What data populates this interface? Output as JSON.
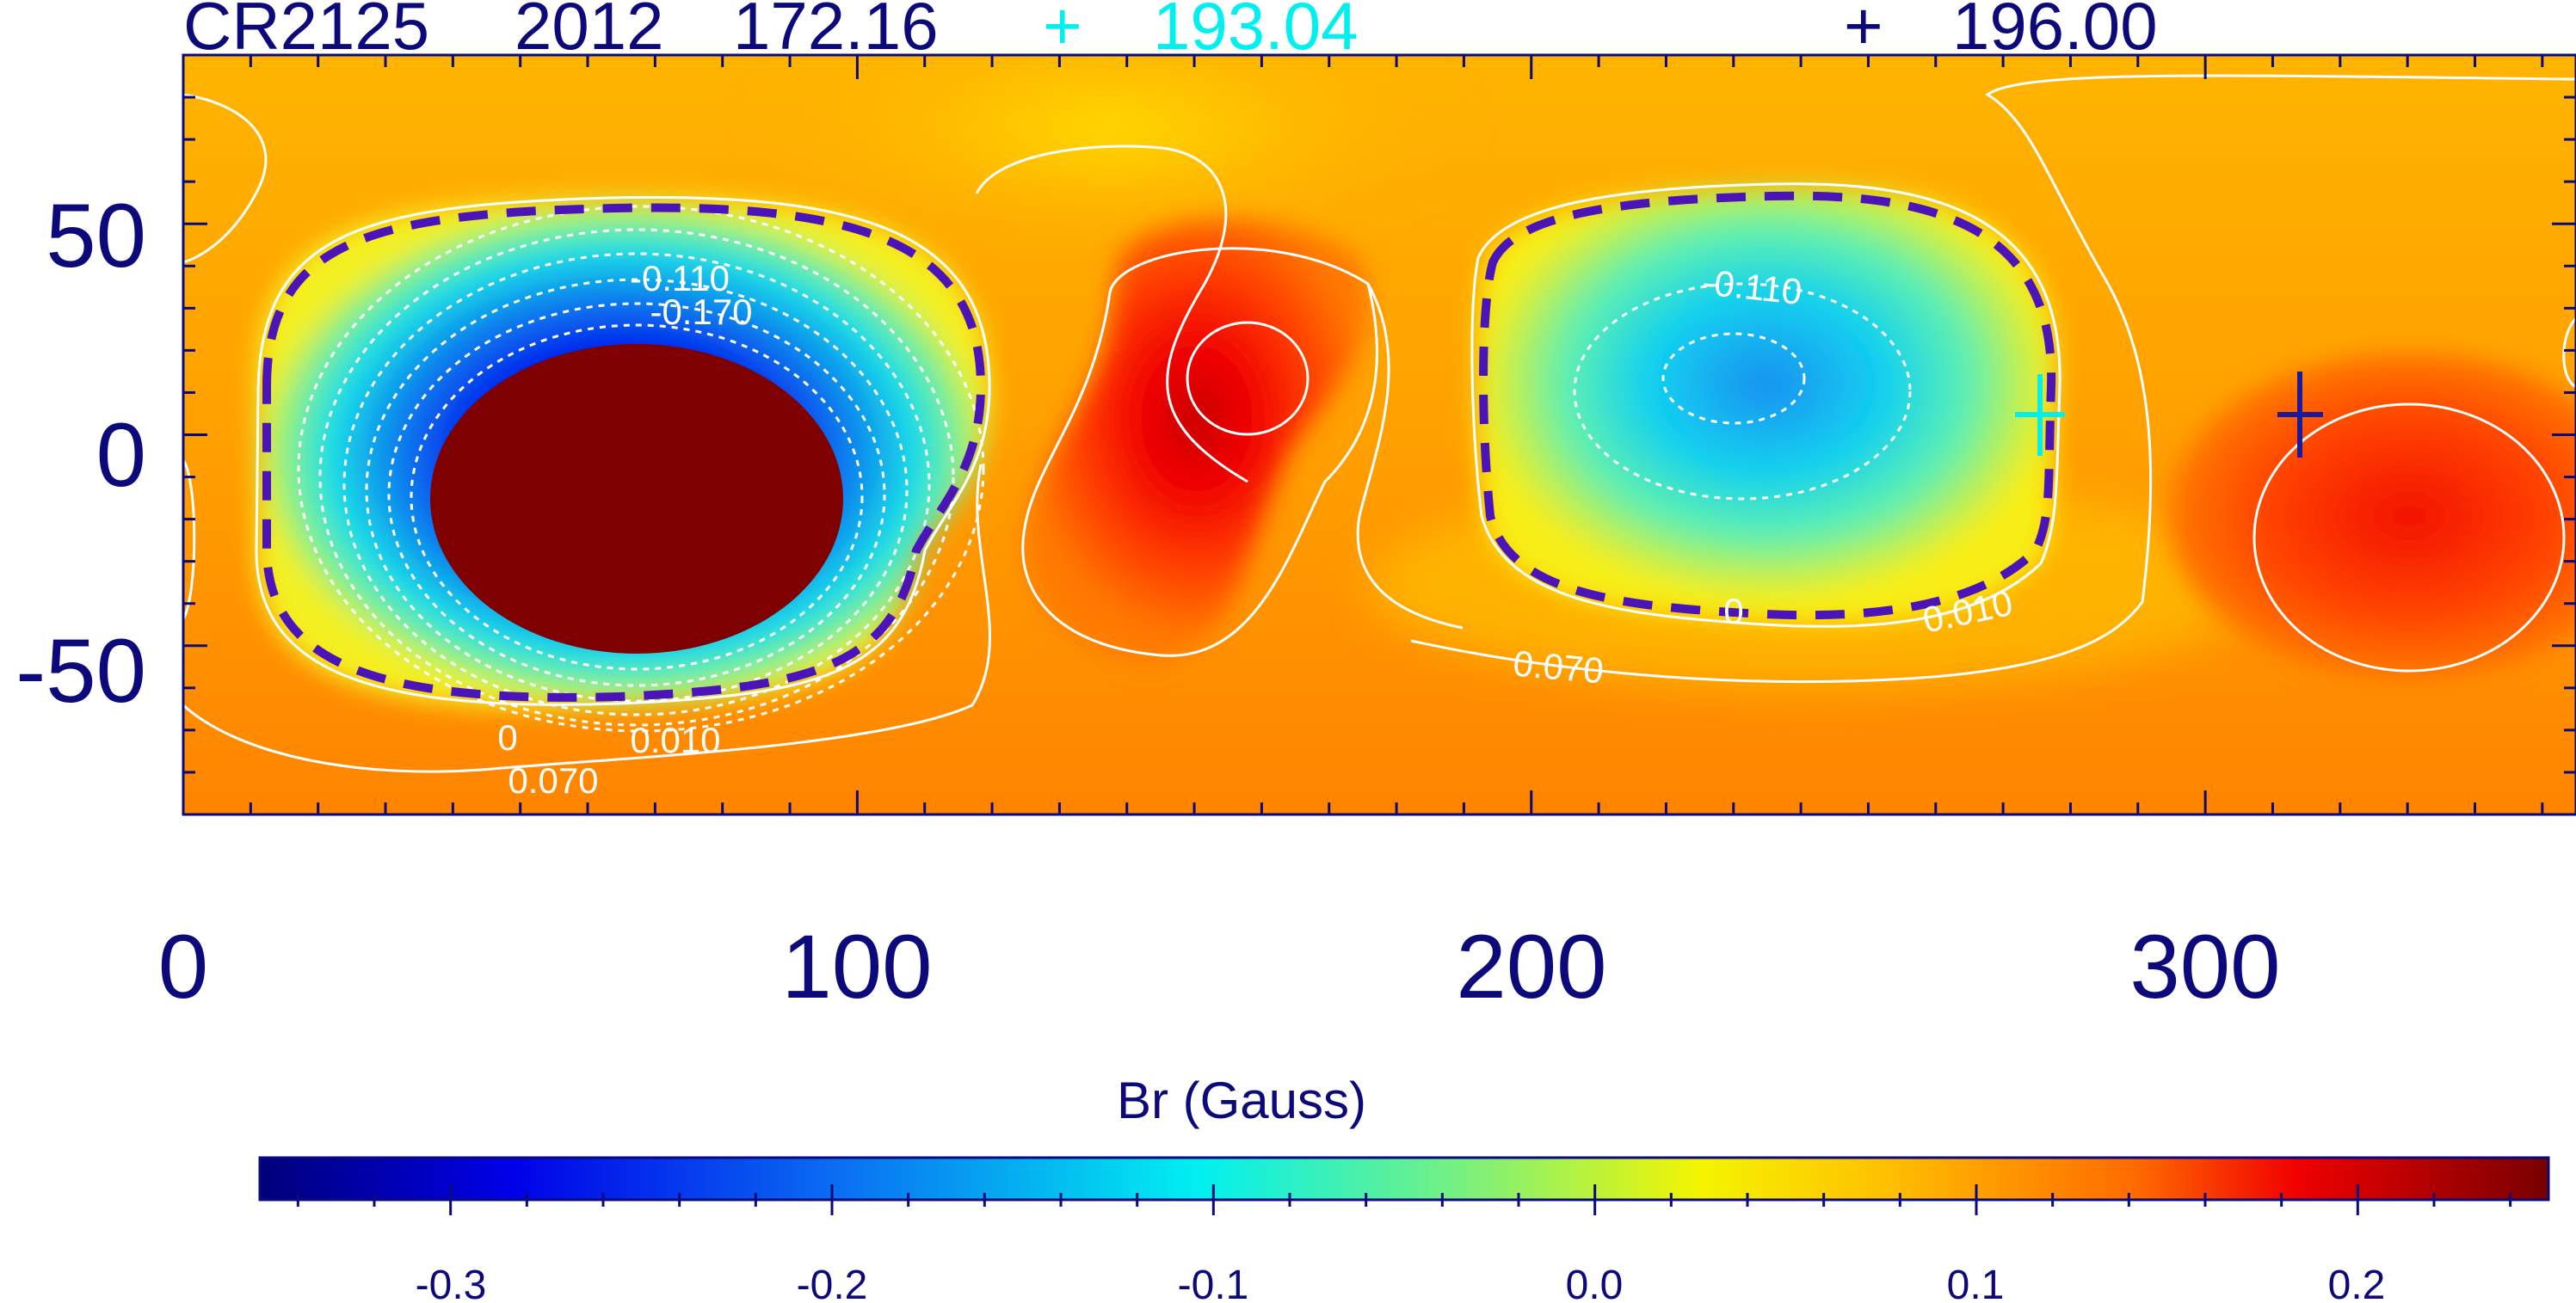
{
  "header": {
    "rotation_label": "CR2125",
    "year": "2012",
    "lon_value": "172.16",
    "cyan_marker_symbol": "+",
    "cyan_marker_value": "193.04",
    "navy_marker_symbol": "+",
    "navy_marker_value": "196.00"
  },
  "colors": {
    "text": "#0c0a7a",
    "cyan_marker": "#00f0f0",
    "navy_marker": "#1a1a9a",
    "zero_contour": "#4a14b8",
    "contour": "#ffffff"
  },
  "chart_data": {
    "type": "heatmap",
    "title": "CR2125 2012 172.16",
    "xlim": [
      0,
      355
    ],
    "ylim": [
      -90,
      90
    ],
    "x_ticks": [
      0,
      100,
      200,
      300
    ],
    "y_ticks": [
      50,
      0,
      -50
    ],
    "x_tick_labels": [
      "0",
      "100",
      "200",
      "300"
    ],
    "y_tick_labels": [
      "50",
      "0",
      "-50"
    ],
    "colorbar": {
      "label": "Br (Gauss)",
      "range": [
        -0.35,
        0.25
      ],
      "ticks": [
        -0.3,
        -0.2,
        -0.1,
        0.0,
        0.1,
        0.2
      ],
      "tick_labels": [
        "-0.3",
        "-0.2",
        "-0.1",
        "0.0",
        "0.1",
        "0.2"
      ]
    },
    "features": [
      {
        "name": "negative-polarity-region",
        "center_lon": 68,
        "center_lat": -18,
        "polarity": "negative"
      },
      {
        "name": "positive-peak",
        "center_lon": 159,
        "center_lat": 14,
        "polarity": "positive"
      },
      {
        "name": "negative-polarity-region-2",
        "center_lon": 230,
        "center_lat": 12,
        "polarity": "negative"
      },
      {
        "name": "positive-region-2",
        "center_lon": 328,
        "center_lat": -20,
        "polarity": "positive"
      }
    ],
    "contour_labels": [
      {
        "text": "-0.110",
        "lon": 73,
        "lat": 35
      },
      {
        "text": "-0.170",
        "lon": 77,
        "lat": 28
      },
      {
        "text": "0",
        "lon": 48,
        "lat": -70
      },
      {
        "text": "0.010",
        "lon": 73,
        "lat": -71
      },
      {
        "text": "0.070",
        "lon": 55,
        "lat": -81
      },
      {
        "text": "-0.110",
        "lon": 234,
        "lat": 35
      },
      {
        "text": "0.070",
        "lon": 205,
        "lat": -54
      },
      {
        "text": "0",
        "lon": 230,
        "lat": -40
      },
      {
        "text": "0.010",
        "lon": 276,
        "lat": -41
      }
    ],
    "markers": [
      {
        "name": "cyan-cross",
        "lon": 275,
        "lat": 5,
        "color": "#00f0f0"
      },
      {
        "name": "navy-cross",
        "lon": 313,
        "lat": 5,
        "color": "#1a1a9a"
      }
    ]
  }
}
